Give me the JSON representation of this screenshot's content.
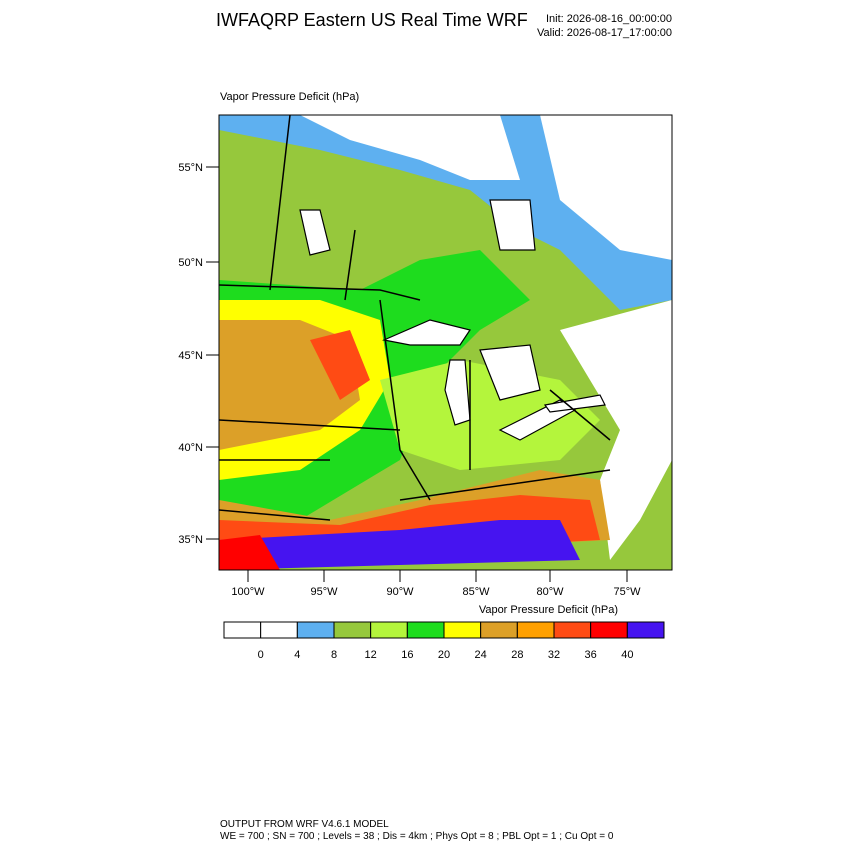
{
  "header": {
    "title": "IWFAQRP Eastern US Real Time WRF",
    "init": "Init: 2026-08-16_00:00:00",
    "valid": "Valid: 2026-08-17_17:00:00"
  },
  "map": {
    "title": "Vapor Pressure Deficit   (hPa)",
    "lat_labels": [
      "55°N",
      "50°N",
      "45°N",
      "40°N",
      "35°N"
    ],
    "lon_labels": [
      "100°W",
      "95°W",
      "90°W",
      "85°W",
      "80°W",
      "75°W"
    ]
  },
  "colorbar": {
    "title": "Vapor Pressure Deficit  (hPa)",
    "levels": [
      0,
      4,
      8,
      12,
      16,
      20,
      24,
      28,
      32,
      36,
      40
    ],
    "colors": [
      "#ffffff",
      "#ffffff",
      "#5eb0f0",
      "#96c83c",
      "#b4f53c",
      "#1edc1e",
      "#ffff00",
      "#dca028",
      "#ffa000",
      "#ff4b14",
      "#ff0000",
      "#4614f0"
    ]
  },
  "footer": {
    "line1": "OUTPUT FROM WRF V4.6.1 MODEL",
    "line2": "WE = 700 ; SN = 700 ; Levels = 38 ; Dis = 4km ; Phys Opt = 8 ; PBL Opt = 1 ; Cu Opt = 0"
  }
}
